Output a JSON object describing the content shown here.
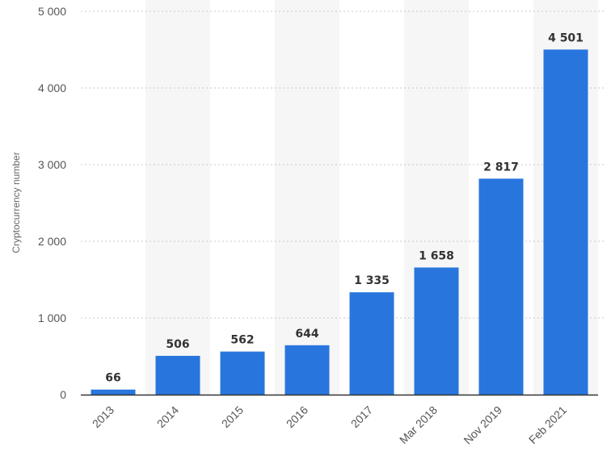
{
  "chart_data": {
    "type": "bar",
    "categories": [
      "2013",
      "2014",
      "2015",
      "2016",
      "2017",
      "Mar 2018",
      "Nov 2019",
      "Feb 2021"
    ],
    "values": [
      66,
      506,
      562,
      644,
      1335,
      1658,
      2817,
      4501
    ],
    "value_labels": [
      "66",
      "506",
      "562",
      "644",
      "1 335",
      "1 658",
      "2 817",
      "4 501"
    ],
    "title": "",
    "xlabel": "",
    "ylabel": "Cryptocurrency number",
    "ylim": [
      0,
      5000
    ],
    "yticks": [
      0,
      1000,
      2000,
      3000,
      4000,
      5000
    ],
    "ytick_labels": [
      "0",
      "1 000",
      "2 000",
      "3 000",
      "4 000",
      "5 000"
    ],
    "grid": true,
    "grid_style": "dotted",
    "alternating_column_shading": true,
    "legend": "none",
    "colors": {
      "bar": "#2876dd",
      "shade": "#f6f6f6",
      "grid": "#c8c8c8",
      "axis": "#333333"
    }
  }
}
